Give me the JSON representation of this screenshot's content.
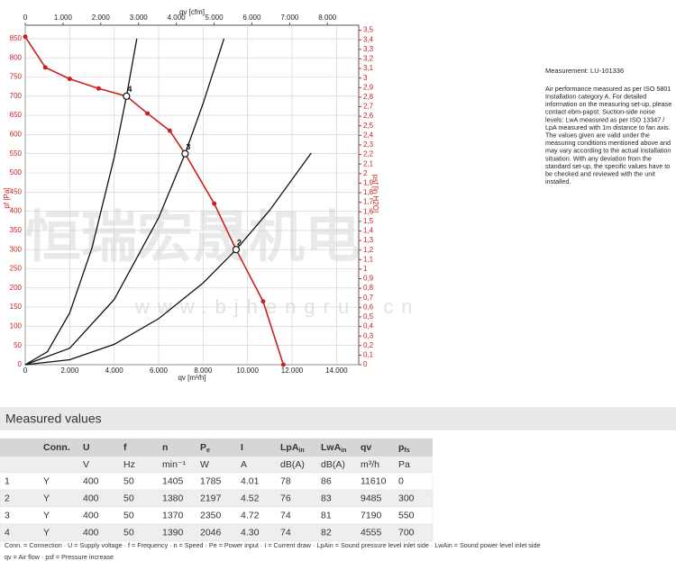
{
  "chart_data": {
    "type": "line",
    "xlabel": "qv [m³/h]",
    "x2label": "qv [cfm]",
    "ylabel": "pf [Pa]",
    "y2label": "psf [in H2O]",
    "xlim": [
      0,
      15000
    ],
    "x2lim": [
      0,
      8829
    ],
    "ylim": [
      0,
      885
    ],
    "y2lim": [
      0,
      3.553
    ],
    "xticks": [
      0,
      {
        "value": 2000,
        "label": "2.000"
      },
      {
        "value": 4000,
        "label": "4.000"
      },
      {
        "value": 6000,
        "label": "6.000"
      },
      {
        "value": 8000,
        "label": "8.000"
      },
      {
        "value": 10000,
        "label": "10.000"
      },
      {
        "value": 12000,
        "label": "12.000"
      },
      {
        "value": 14000,
        "label": "14.000"
      }
    ],
    "x2ticks": [
      0,
      {
        "value": 1000,
        "label": "1.000"
      },
      {
        "value": 2000,
        "label": "2.000"
      },
      {
        "value": 3000,
        "label": "3.000"
      },
      {
        "value": 4000,
        "label": "4.000"
      },
      {
        "value": 5000,
        "label": "5.000"
      },
      {
        "value": 6000,
        "label": "6.000"
      },
      {
        "value": 7000,
        "label": "7.000"
      },
      {
        "value": 8000,
        "label": "8.000"
      }
    ],
    "yticks": [
      0,
      50,
      100,
      150,
      200,
      250,
      300,
      350,
      400,
      450,
      500,
      550,
      600,
      650,
      700,
      750,
      800,
      850
    ],
    "y2ticks": [
      0,
      {
        "value": 0.1,
        "label": "0,1"
      },
      {
        "value": 0.2,
        "label": "0,2"
      },
      {
        "value": 0.3,
        "label": "0,3"
      },
      {
        "value": 0.4,
        "label": "0,4"
      },
      {
        "value": 0.5,
        "label": "0,5"
      },
      {
        "value": 0.6,
        "label": "0,6"
      },
      {
        "value": 0.7,
        "label": "0,7"
      },
      {
        "value": 0.8,
        "label": "0,8"
      },
      {
        "value": 0.9,
        "label": "0,9"
      },
      {
        "value": 1,
        "label": "1"
      },
      {
        "value": 1.1,
        "label": "1,1"
      },
      {
        "value": 1.2,
        "label": "1,2"
      },
      {
        "value": 1.3,
        "label": "1,3"
      },
      {
        "value": 1.4,
        "label": "1,4"
      },
      {
        "value": 1.5,
        "label": "1,5"
      },
      {
        "value": 1.6,
        "label": "1,6"
      },
      {
        "value": 1.7,
        "label": "1,7"
      },
      {
        "value": 1.8,
        "label": "1,8"
      },
      {
        "value": 1.9,
        "label": "1,9"
      },
      {
        "value": 2,
        "label": "2"
      },
      {
        "value": 2.1,
        "label": "2,1"
      },
      {
        "value": 2.2,
        "label": "2,2"
      },
      {
        "value": 2.3,
        "label": "2,3"
      },
      {
        "value": 2.4,
        "label": "2,4"
      },
      {
        "value": 2.5,
        "label": "2,5"
      },
      {
        "value": 2.6,
        "label": "2,6"
      },
      {
        "value": 2.7,
        "label": "2,7"
      },
      {
        "value": 2.8,
        "label": "2,8"
      },
      {
        "value": 2.9,
        "label": "2,9"
      },
      {
        "value": 3,
        "label": "3"
      },
      {
        "value": 3.1,
        "label": "3,1"
      },
      {
        "value": 3.2,
        "label": "3,2"
      },
      {
        "value": 3.3,
        "label": "3,3"
      },
      {
        "value": 3.4,
        "label": "3,4"
      },
      {
        "value": 3.5,
        "label": "3,5"
      }
    ],
    "grid": true,
    "series": [
      {
        "color": "#c9211e",
        "markers": true,
        "x": [
          0,
          900,
          2000,
          3300,
          4555,
          5500,
          6500,
          7190,
          8500,
          9485,
          10700,
          11610
        ],
        "values": [
          855,
          775,
          745,
          720,
          700,
          655,
          610,
          550,
          420,
          300,
          165,
          0
        ],
        "point_labels": [
          null,
          null,
          null,
          null,
          "4",
          null,
          null,
          "3",
          null,
          "2",
          null,
          null
        ]
      },
      {
        "color": "#111111",
        "x": [
          0,
          1000,
          2000,
          3000,
          4000,
          4555,
          5019
        ],
        "values": [
          0,
          34,
          135,
          304,
          540,
          700,
          850
        ]
      },
      {
        "color": "#111111",
        "x": [
          0,
          2000,
          4000,
          6000,
          7190,
          8000,
          8939
        ],
        "values": [
          0,
          43,
          170,
          383,
          550,
          681,
          850
        ]
      },
      {
        "color": "#111111",
        "x": [
          0,
          2000,
          4000,
          6000,
          8000,
          9485,
          11000,
          12866
        ],
        "values": [
          0,
          13,
          53,
          120,
          213,
          300,
          403,
          552
        ]
      }
    ]
  },
  "watermark": {
    "text": "恒瑞宏晟机电",
    "url": "www.bjhengrui.cn"
  },
  "measurement": {
    "title": "Measurement: LU-101336",
    "lines": [
      "Air performance measured as per ISO 5801",
      "Installation category A. For detailed",
      "information on the measuring set-up, please",
      "contact ebm-papst. Suction-side noise",
      "levels: LwA measured as per ISO 13347 /",
      "LpA measured with 1m distance to fan axis.",
      "The values given are valid under the",
      "measuring conditions mentioned above and",
      "may vary according to the actual installation",
      "situation. With any deviation from the",
      "standard set-up, the specific values have to",
      "be checked and reviewed with the unit",
      "installed."
    ]
  },
  "table": {
    "title": "Measured values",
    "headers": [
      null,
      "Conn.",
      "U",
      "f",
      "n",
      {
        "main": "P",
        "sub": "e"
      },
      "I",
      {
        "main": "LpA",
        "sub": "in"
      },
      {
        "main": "LwA",
        "sub": "in"
      },
      "qv",
      {
        "main": "p",
        "sub": "fs"
      }
    ],
    "units": [
      null,
      null,
      "V",
      "Hz",
      "min⁻¹",
      "W",
      "A",
      "dB(A)",
      "dB(A)",
      "m³/h",
      "Pa"
    ],
    "rows": [
      [
        "1",
        "Y",
        "400",
        "50",
        "1405",
        "1785",
        "4.01",
        "78",
        "86",
        "11610",
        "0"
      ],
      [
        "2",
        "Y",
        "400",
        "50",
        "1380",
        "2197",
        "4.52",
        "76",
        "83",
        "9485",
        "300"
      ],
      [
        "3",
        "Y",
        "400",
        "50",
        "1370",
        "2350",
        "4.72",
        "74",
        "81",
        "7190",
        "550"
      ],
      [
        "4",
        "Y",
        "400",
        "50",
        "1390",
        "2046",
        "4.30",
        "74",
        "82",
        "4555",
        "700"
      ]
    ],
    "footnotes": [
      "Conn. = Connection · U = Supply voltage · f = Frequency · n = Speed · Pe = Power input · I = Current draw · LpAin = Sound pressure level inlet side · LwAin = Sound power level inlet side",
      "qv = Air flow · psf = Pressure increase"
    ]
  }
}
